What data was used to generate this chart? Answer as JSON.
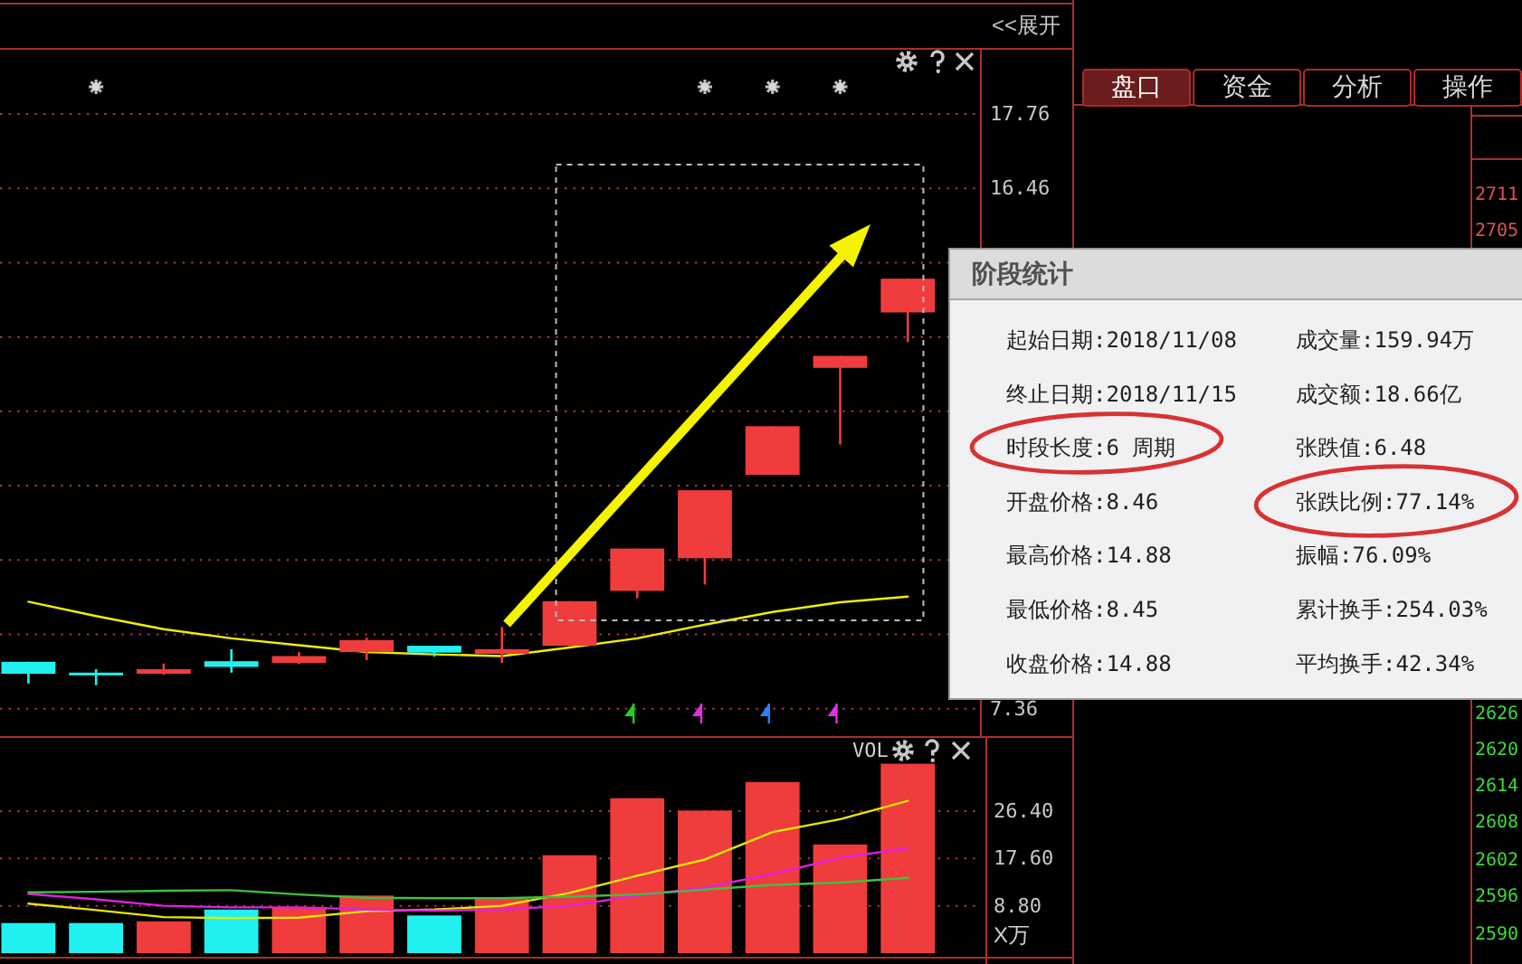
{
  "chart_data": [
    {
      "type": "candlestick",
      "categories": [
        null,
        null,
        null,
        null,
        null,
        null,
        null,
        null,
        null,
        null,
        null,
        null,
        null,
        null
      ],
      "ohlc": [
        [
          8.18,
          8.18,
          7.8,
          7.97
        ],
        [
          7.99,
          8.05,
          7.77,
          7.96
        ],
        [
          7.97,
          8.15,
          7.95,
          8.05
        ],
        [
          8.19,
          8.4,
          7.99,
          8.09
        ],
        [
          8.16,
          8.35,
          8.14,
          8.28
        ],
        [
          8.35,
          8.6,
          8.21,
          8.56
        ],
        [
          8.46,
          8.46,
          8.27,
          8.34
        ],
        [
          8.32,
          8.79,
          8.16,
          8.4
        ],
        [
          8.46,
          9.24,
          8.45,
          9.24
        ],
        [
          9.42,
          10.16,
          9.29,
          10.16
        ],
        [
          9.99,
          11.18,
          9.53,
          11.18
        ],
        [
          11.45,
          12.3,
          11.45,
          12.3
        ],
        [
          13.32,
          13.53,
          11.98,
          13.53
        ],
        [
          14.29,
          14.88,
          13.77,
          14.88
        ]
      ],
      "colors": [
        "#20f0f0",
        "#20f0f0",
        "#f03c3c",
        "#20f0f0",
        "#f03c3c",
        "#f03c3c",
        "#20f0f0",
        "#f03c3c",
        "#f03c3c",
        "#f03c3c",
        "#f03c3c",
        "#f03c3c",
        "#f03c3c",
        "#f03c3c"
      ],
      "series": [
        {
          "type": "line",
          "color": "#f0f000",
          "values": [
            9.23,
            8.98,
            8.75,
            8.59,
            8.47,
            8.35,
            8.31,
            8.28,
            8.43,
            8.59,
            8.83,
            9.05,
            9.22,
            9.32
          ]
        }
      ],
      "ylim": [
        6.88,
        18.9
      ],
      "yticks": [
        17.76,
        16.46,
        {
          "value": 15.16,
          "label": null
        },
        {
          "value": 13.86,
          "label": null
        },
        {
          "value": 12.56,
          "label": null
        },
        {
          "value": 11.26,
          "label": null
        },
        {
          "value": 9.96,
          "label": null
        },
        {
          "value": 8.66,
          "label": null
        },
        7.36
      ],
      "grid": "y",
      "tick_labels": "y",
      "annotations": [
        "<<展开"
      ]
    },
    {
      "type": "bar",
      "title": "VOL",
      "ylabel": "X万",
      "categories": [
        null,
        null,
        null,
        null,
        null,
        null,
        null,
        null,
        null,
        null,
        null,
        null,
        null,
        null
      ],
      "series": [
        {
          "type": "bar",
          "colors": [
            "#20f0f0",
            "#20f0f0",
            "#f03c3c",
            "#20f0f0",
            "#f03c3c",
            "#f03c3c",
            "#20f0f0",
            "#f03c3c",
            "#f03c3c",
            "#f03c3c",
            "#f03c3c",
            "#f03c3c",
            "#f03c3c",
            "#f03c3c"
          ],
          "values": [
            5.6,
            5.6,
            5.9,
            8.1,
            8.5,
            10.7,
            7.0,
            10.2,
            18.2,
            28.8,
            26.5,
            31.8,
            20.2,
            35.2
          ]
        },
        {
          "type": "line",
          "color": "#e8e800",
          "values": [
            9.2,
            8.0,
            6.7,
            6.5,
            6.6,
            7.8,
            8.1,
            8.8,
            11.2,
            14.4,
            17.4,
            22.5,
            24.9,
            28.3
          ]
        },
        {
          "type": "line",
          "color": "#e020e0",
          "values": [
            11.0,
            10.0,
            8.8,
            8.5,
            8.5,
            8.1,
            7.9,
            8.1,
            8.8,
            10.7,
            12.2,
            14.7,
            17.7,
            19.5
          ]
        },
        {
          "type": "line",
          "color": "#40c040",
          "values": [
            11.3,
            11.4,
            11.6,
            11.7,
            10.9,
            10.3,
            10.2,
            10.2,
            10.5,
            10.9,
            11.8,
            12.7,
            13.1,
            14.0
          ]
        }
      ],
      "ylim": [
        0,
        40
      ],
      "yticks": [
        {
          "value": 8.8,
          "label": "8.80"
        },
        {
          "value": 17.6,
          "label": "17.60"
        },
        {
          "value": 26.4,
          "label": "26.40"
        }
      ],
      "grid": "y",
      "tick_labels": "y"
    },
    {
      "type": "other",
      "title": "阶段统计",
      "annotations": [
        "起始日期:2018/11/08",
        "成交量:159.94万",
        "终止日期:2018/11/15",
        "成交额:18.66亿",
        "时段长度:6 周期",
        "张跌值:6.48",
        "开盘价格:8.46",
        "张跌比例:77.14%",
        "最高价格:14.88",
        "振幅:76.09%",
        "最低价格:8.45",
        "累计换手:254.03%",
        "收盘价格:14.88",
        "平均换手:42.34%"
      ]
    },
    {
      "type": "other",
      "annotations": [
        "盘口",
        "资金",
        "分析",
        "操作",
        "2711",
        "2705",
        "2626",
        "2620",
        "2614",
        "2608",
        "2602",
        "2596",
        "2590"
      ]
    }
  ]
}
